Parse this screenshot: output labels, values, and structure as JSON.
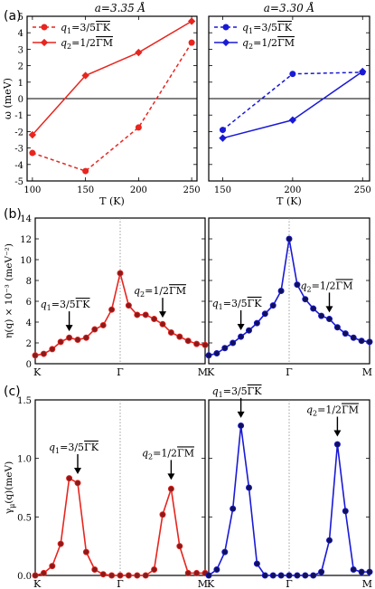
{
  "chart_data": [
    {
      "type": "line",
      "panel": "(a)",
      "title": "a=3.35 Å",
      "xlabel": "T (K)",
      "ylabel": "ω (meV)",
      "xlim": [
        95,
        255
      ],
      "ylim": [
        -5,
        5
      ],
      "xticks": [
        100,
        150,
        200,
        250
      ],
      "yticks": [
        -5,
        -4,
        -3,
        -2,
        -1,
        0,
        1,
        2,
        3,
        4,
        5
      ],
      "grid": false,
      "legend_position": "top-left",
      "series": [
        {
          "name": "q1=3/5ΓK",
          "label_main": "q",
          "label_sub": "1",
          "label_frac": "=3/5",
          "label_path": "ΓK",
          "color": "#e8251f",
          "style": "dashed",
          "marker": "circle",
          "x": [
            100,
            150,
            200,
            250
          ],
          "y": [
            -3.3,
            -4.4,
            -1.75,
            3.4
          ]
        },
        {
          "name": "q2=1/2ΓM",
          "label_main": "q",
          "label_sub": "2",
          "label_frac": "=1/2",
          "label_path": "ΓM",
          "color": "#e8251f",
          "style": "solid",
          "marker": "diamond",
          "x": [
            100,
            150,
            200,
            250
          ],
          "y": [
            -2.2,
            1.4,
            2.8,
            4.7
          ]
        }
      ]
    },
    {
      "type": "line",
      "panel": "",
      "title": "a=3.30 Å",
      "xlabel": "T (K)",
      "ylabel": "",
      "xlim": [
        140,
        255
      ],
      "ylim": [
        -5,
        5
      ],
      "xticks": [
        150,
        200,
        250
      ],
      "yticks": [
        -5,
        -4,
        -3,
        -2,
        -1,
        0,
        1,
        2,
        3,
        4,
        5
      ],
      "grid": false,
      "legend_position": "top-left",
      "series": [
        {
          "name": "q1=3/5ΓK",
          "label_main": "q",
          "label_sub": "1",
          "label_frac": "=3/5",
          "label_path": "ΓK",
          "color": "#1a1ad6",
          "style": "dashed",
          "marker": "circle",
          "x": [
            150,
            200,
            250
          ],
          "y": [
            -1.9,
            1.5,
            1.6
          ]
        },
        {
          "name": "q2=1/2ΓM",
          "label_main": "q",
          "label_sub": "2",
          "label_frac": "=1/2",
          "label_path": "ΓM",
          "color": "#1a1ad6",
          "style": "solid",
          "marker": "diamond",
          "x": [
            150,
            200,
            250
          ],
          "y": [
            -2.4,
            -1.3,
            1.65
          ]
        }
      ]
    },
    {
      "type": "line",
      "panel": "(b)",
      "ylabel": "η(q) × 10⁻³ (meV⁻²)",
      "xlabel": "",
      "categories": [
        "K",
        "Γ",
        "M"
      ],
      "x_positions": [
        0,
        1,
        2
      ],
      "xlim": [
        0,
        2
      ],
      "ylim": [
        0,
        14
      ],
      "yticks": [
        0,
        2,
        4,
        6,
        8,
        10,
        12,
        14
      ],
      "grid": false,
      "series": [
        {
          "name": "",
          "color": "#e8251f",
          "marker": "circle",
          "marker_fill": "#8b1a1a",
          "x": [
            0,
            0.1,
            0.2,
            0.3,
            0.4,
            0.5,
            0.6,
            0.7,
            0.8,
            0.9,
            1.0,
            1.1,
            1.2,
            1.3,
            1.4,
            1.5,
            1.6,
            1.7,
            1.8,
            1.9,
            2.0
          ],
          "y": [
            0.8,
            0.95,
            1.4,
            2.1,
            2.5,
            2.3,
            2.5,
            3.3,
            3.7,
            5.2,
            8.7,
            5.6,
            4.7,
            4.7,
            4.3,
            3.8,
            3.0,
            2.6,
            2.2,
            1.9,
            1.8
          ]
        }
      ],
      "annotations": [
        {
          "main": "q",
          "sub": "1",
          "frac": "=3/5",
          "path": "ΓK",
          "x": 0.4,
          "y": 2.6
        },
        {
          "main": "q",
          "sub": "2",
          "frac": "=1/2",
          "path": "ΓM",
          "x": 1.5,
          "y": 3.9
        }
      ]
    },
    {
      "type": "line",
      "panel": "",
      "ylabel": "",
      "xlabel": "",
      "categories": [
        "K",
        "Γ",
        "M"
      ],
      "x_positions": [
        0,
        1,
        2
      ],
      "xlim": [
        0,
        2
      ],
      "ylim": [
        0,
        14
      ],
      "yticks": [
        0,
        2,
        4,
        6,
        8,
        10,
        12,
        14
      ],
      "grid": false,
      "series": [
        {
          "name": "",
          "color": "#1a1ad6",
          "marker": "circle",
          "marker_fill": "#10105a",
          "x": [
            0,
            0.1,
            0.2,
            0.3,
            0.4,
            0.5,
            0.6,
            0.7,
            0.8,
            0.9,
            1.0,
            1.1,
            1.2,
            1.3,
            1.4,
            1.5,
            1.6,
            1.7,
            1.8,
            1.9,
            2.0
          ],
          "y": [
            0.8,
            1.0,
            1.5,
            2.0,
            2.6,
            3.2,
            3.9,
            4.8,
            5.6,
            7.0,
            12.0,
            7.6,
            6.2,
            5.3,
            4.6,
            4.3,
            3.5,
            2.9,
            2.5,
            2.2,
            2.1
          ]
        }
      ],
      "annotations": [
        {
          "main": "q",
          "sub": "1",
          "frac": "=3/5",
          "path": "ΓK",
          "x": 0.4,
          "y": 2.7
        },
        {
          "main": "q",
          "sub": "2",
          "frac": "=1/2",
          "path": "ΓM",
          "x": 1.5,
          "y": 4.4
        }
      ]
    },
    {
      "type": "line",
      "panel": "(c)",
      "ylabel": "γμ(q)(meV)",
      "ylabel_main": "γ",
      "ylabel_sub": "μ",
      "ylabel_rest": "(q)(meV)",
      "xlabel": "",
      "categories": [
        "K",
        "Γ",
        "M"
      ],
      "x_positions": [
        0,
        1,
        2
      ],
      "xlim": [
        0,
        2
      ],
      "ylim": [
        0,
        1.5
      ],
      "yticks": [
        0,
        0.5,
        1.0,
        1.5
      ],
      "ytick_labels": [
        "0.0",
        "0.5",
        "1.0",
        "1.5"
      ],
      "grid": false,
      "series": [
        {
          "name": "",
          "color": "#e8251f",
          "marker": "circle",
          "marker_fill": "#8b1a1a",
          "x": [
            0,
            0.1,
            0.2,
            0.3,
            0.4,
            0.5,
            0.6,
            0.7,
            0.8,
            0.9,
            1.0,
            1.1,
            1.2,
            1.3,
            1.4,
            1.5,
            1.6,
            1.7,
            1.8,
            1.9,
            2.0
          ],
          "y": [
            0.0,
            0.02,
            0.08,
            0.27,
            0.83,
            0.79,
            0.2,
            0.05,
            0.01,
            0.0,
            0.0,
            0.0,
            0.0,
            0.0,
            0.05,
            0.52,
            0.74,
            0.25,
            0.02,
            0.02,
            0.02
          ]
        }
      ],
      "annotations": [
        {
          "main": "q",
          "sub": "1",
          "frac": "=3/5",
          "path": "ΓK",
          "x": 0.5,
          "y": 0.82
        },
        {
          "main": "q",
          "sub": "2",
          "frac": "=1/2",
          "path": "ΓM",
          "x": 1.6,
          "y": 0.77
        }
      ]
    },
    {
      "type": "line",
      "panel": "",
      "ylabel": "",
      "xlabel": "",
      "categories": [
        "K",
        "Γ",
        "M"
      ],
      "x_positions": [
        0,
        1,
        2
      ],
      "xlim": [
        0,
        2
      ],
      "ylim": [
        0,
        1.5
      ],
      "yticks": [
        0,
        0.5,
        1.0,
        1.5
      ],
      "ytick_labels": [
        "0.0",
        "0.5",
        "1.0",
        "1.5"
      ],
      "grid": false,
      "series": [
        {
          "name": "",
          "color": "#1a1ad6",
          "marker": "circle",
          "marker_fill": "#10105a",
          "x": [
            0,
            0.1,
            0.2,
            0.3,
            0.4,
            0.5,
            0.6,
            0.7,
            0.8,
            0.9,
            1.0,
            1.1,
            1.2,
            1.3,
            1.4,
            1.5,
            1.6,
            1.7,
            1.8,
            1.9,
            2.0
          ],
          "y": [
            0.0,
            0.05,
            0.2,
            0.57,
            1.28,
            0.75,
            0.1,
            0.0,
            0.0,
            0.0,
            0.0,
            0.0,
            0.0,
            0.0,
            0.03,
            0.3,
            1.12,
            0.55,
            0.05,
            0.03,
            0.03
          ]
        }
      ],
      "annotations": [
        {
          "main": "q",
          "sub": "1",
          "frac": "=3/5",
          "path": "ΓK",
          "x": 0.4,
          "y": 1.3
        },
        {
          "main": "q",
          "sub": "2",
          "frac": "=1/2",
          "path": "ΓM",
          "x": 1.6,
          "y": 1.14
        }
      ]
    }
  ]
}
